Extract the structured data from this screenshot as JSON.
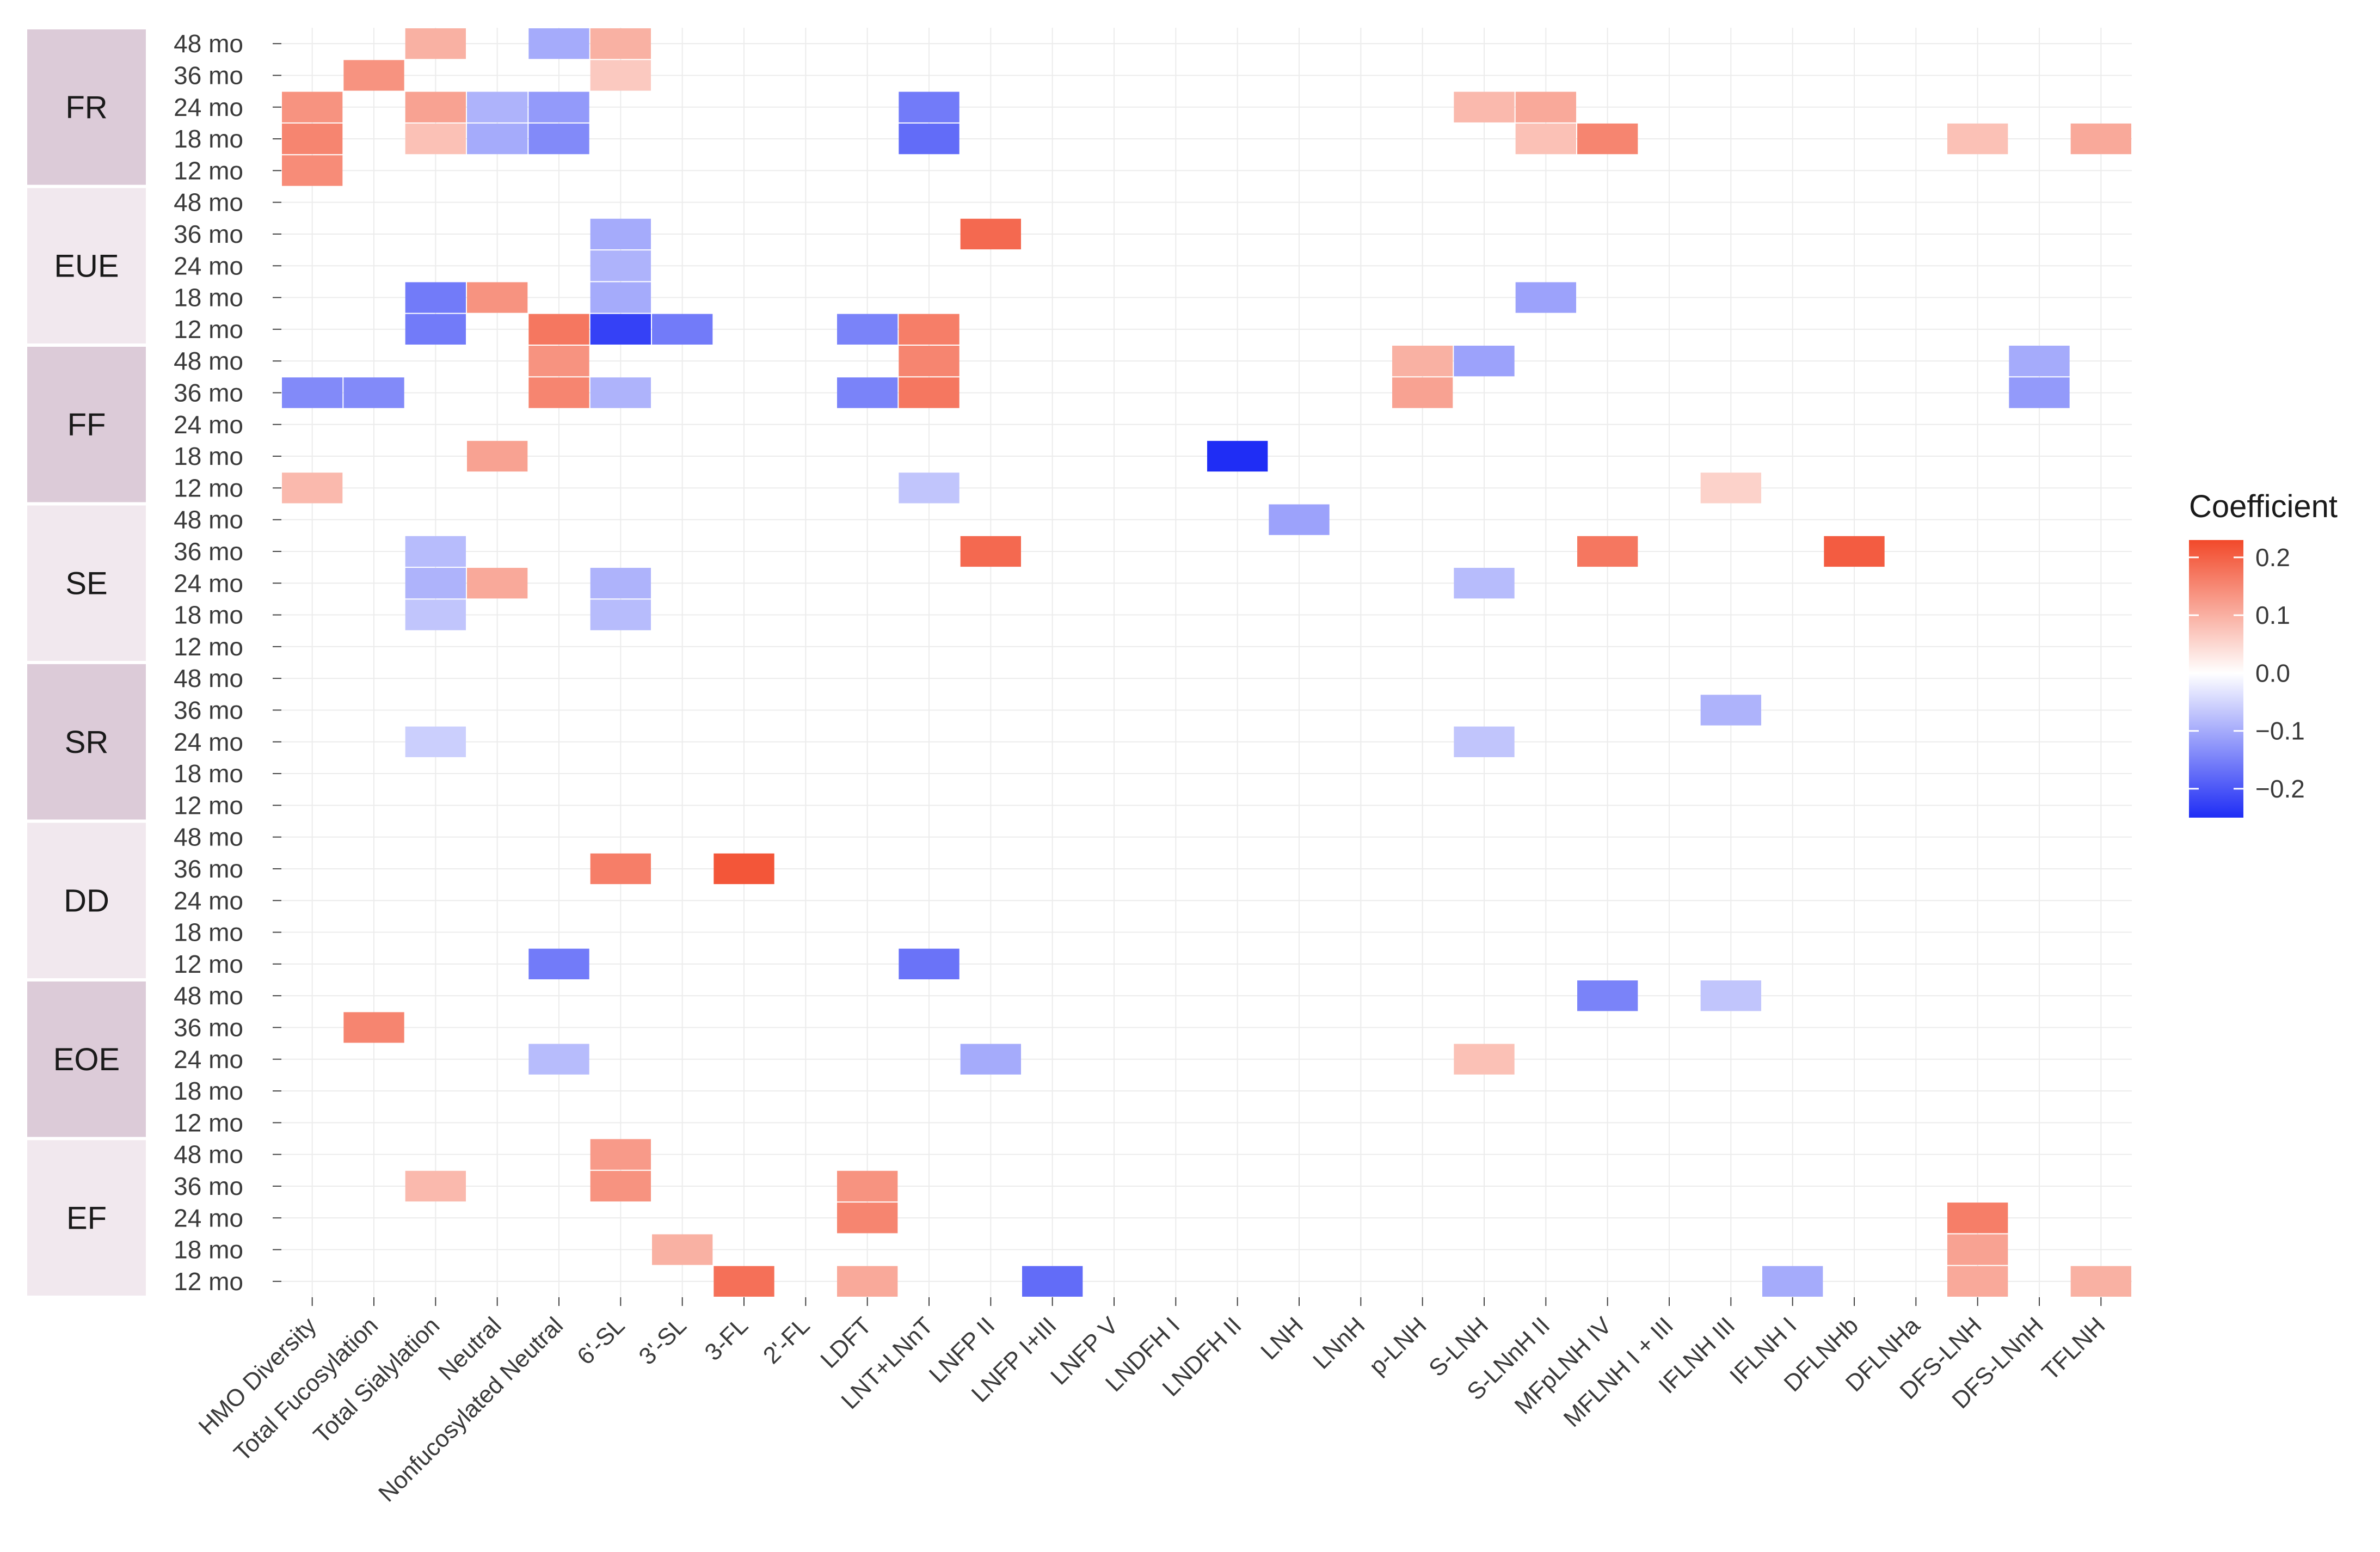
{
  "chart_data": {
    "type": "heatmap",
    "title": "",
    "legend": {
      "title": "Coefficient",
      "ticks": [
        0.2,
        0.1,
        0.0,
        -0.1,
        -0.2
      ],
      "tick_labels": [
        "0.2",
        "0.1",
        "0.0",
        "−0.1",
        "−0.2"
      ],
      "range": [
        -0.25,
        0.23
      ],
      "colors": {
        "low": "#1f2df5",
        "mid": "#ffffff",
        "high": "#f2492a"
      },
      "placement": "right"
    },
    "facets": [
      "FR",
      "EUE",
      "FF",
      "SE",
      "SR",
      "DD",
      "EOE",
      "EF"
    ],
    "time_points": [
      "48 mo",
      "36 mo",
      "24 mo",
      "18 mo",
      "12 mo"
    ],
    "columns": [
      "HMO Diversity",
      "Total Fucosylation",
      "Total Sialylation",
      "Neutral",
      "Nonfucosylated Neutral",
      "6'-SL",
      "3'-SL",
      "3-FL",
      "2'-FL",
      "LDFT",
      "LNT+LNnT",
      "LNFP II",
      "LNFP I+III",
      "LNFP V",
      "LNDFH I",
      "LNDFH II",
      "LNH",
      "LNnH",
      "p-LNH",
      "S-LNH",
      "S-LNnH II",
      "MFpLNH IV",
      "MFLNH I + III",
      "IFLNH III",
      "IFLNH I",
      "DFLNHb",
      "DFLNHa",
      "DFS-LNH",
      "DFS-LNnH",
      "TFLNH"
    ],
    "cells": [
      [
        "FR",
        "48 mo",
        "Total Sialylation",
        0.08
      ],
      [
        "FR",
        "48 mo",
        "Nonfucosylated Neutral",
        -0.08
      ],
      [
        "FR",
        "48 mo",
        "6'-SL",
        0.08
      ],
      [
        "FR",
        "36 mo",
        "Total Fucosylation",
        0.12
      ],
      [
        "FR",
        "36 mo",
        "6'-SL",
        0.05
      ],
      [
        "FR",
        "24 mo",
        "HMO Diversity",
        0.12
      ],
      [
        "FR",
        "24 mo",
        "Total Sialylation",
        0.1
      ],
      [
        "FR",
        "24 mo",
        "Neutral",
        -0.07
      ],
      [
        "FR",
        "24 mo",
        "Nonfucosylated Neutral",
        -0.1
      ],
      [
        "FR",
        "24 mo",
        "LNT+LNnT",
        -0.14
      ],
      [
        "FR",
        "24 mo",
        "S-LNH",
        0.07
      ],
      [
        "FR",
        "24 mo",
        "S-LNnH II",
        0.09
      ],
      [
        "FR",
        "18 mo",
        "HMO Diversity",
        0.14
      ],
      [
        "FR",
        "18 mo",
        "Total Sialylation",
        0.06
      ],
      [
        "FR",
        "18 mo",
        "Neutral",
        -0.08
      ],
      [
        "FR",
        "18 mo",
        "Nonfucosylated Neutral",
        -0.12
      ],
      [
        "FR",
        "18 mo",
        "LNT+LNnT",
        -0.16
      ],
      [
        "FR",
        "18 mo",
        "S-LNnH II",
        0.06
      ],
      [
        "FR",
        "18 mo",
        "MFpLNH IV",
        0.14
      ],
      [
        "FR",
        "18 mo",
        "DFS-LNH",
        0.06
      ],
      [
        "FR",
        "18 mo",
        "TFLNH",
        0.09
      ],
      [
        "FR",
        "12 mo",
        "HMO Diversity",
        0.13
      ],
      [
        "EUE",
        "36 mo",
        "6'-SL",
        -0.08
      ],
      [
        "EUE",
        "36 mo",
        "LNFP II",
        0.18
      ],
      [
        "EUE",
        "24 mo",
        "6'-SL",
        -0.07
      ],
      [
        "EUE",
        "18 mo",
        "Total Sialylation",
        -0.14
      ],
      [
        "EUE",
        "18 mo",
        "Neutral",
        0.12
      ],
      [
        "EUE",
        "18 mo",
        "6'-SL",
        -0.08
      ],
      [
        "EUE",
        "18 mo",
        "S-LNnH II",
        -0.09
      ],
      [
        "EUE",
        "12 mo",
        "Total Sialylation",
        -0.14
      ],
      [
        "EUE",
        "12 mo",
        "Nonfucosylated Neutral",
        0.16
      ],
      [
        "EUE",
        "12 mo",
        "6'-SL",
        -0.22
      ],
      [
        "EUE",
        "12 mo",
        "3'-SL",
        -0.14
      ],
      [
        "EUE",
        "12 mo",
        "LDFT",
        -0.13
      ],
      [
        "EUE",
        "12 mo",
        "LNT+LNnT",
        0.15
      ],
      [
        "FF",
        "48 mo",
        "Nonfucosylated Neutral",
        0.12
      ],
      [
        "FF",
        "48 mo",
        "LNT+LNnT",
        0.14
      ],
      [
        "FF",
        "48 mo",
        "p-LNH",
        0.08
      ],
      [
        "FF",
        "48 mo",
        "S-LNH",
        -0.09
      ],
      [
        "FF",
        "48 mo",
        "DFS-LNnH",
        -0.08
      ],
      [
        "FF",
        "36 mo",
        "HMO Diversity",
        -0.12
      ],
      [
        "FF",
        "36 mo",
        "Total Fucosylation",
        -0.12
      ],
      [
        "FF",
        "36 mo",
        "Nonfucosylated Neutral",
        0.14
      ],
      [
        "FF",
        "36 mo",
        "6'-SL",
        -0.07
      ],
      [
        "FF",
        "36 mo",
        "LDFT",
        -0.13
      ],
      [
        "FF",
        "36 mo",
        "LNT+LNnT",
        0.16
      ],
      [
        "FF",
        "36 mo",
        "p-LNH",
        0.1
      ],
      [
        "FF",
        "36 mo",
        "DFS-LNnH",
        -0.1
      ],
      [
        "FF",
        "18 mo",
        "Neutral",
        0.1
      ],
      [
        "FF",
        "18 mo",
        "LNDFH II",
        -0.25
      ],
      [
        "FF",
        "12 mo",
        "HMO Diversity",
        0.07
      ],
      [
        "FF",
        "12 mo",
        "LNT+LNnT",
        -0.05
      ],
      [
        "FF",
        "12 mo",
        "IFLNH III",
        0.04
      ],
      [
        "SE",
        "48 mo",
        "LNH",
        -0.09
      ],
      [
        "SE",
        "36 mo",
        "Total Sialylation",
        -0.06
      ],
      [
        "SE",
        "36 mo",
        "LNFP II",
        0.18
      ],
      [
        "SE",
        "36 mo",
        "MFpLNH IV",
        0.16
      ],
      [
        "SE",
        "36 mo",
        "DFLNHb",
        0.2
      ],
      [
        "SE",
        "24 mo",
        "Total Sialylation",
        -0.07
      ],
      [
        "SE",
        "24 mo",
        "Neutral",
        0.09
      ],
      [
        "SE",
        "24 mo",
        "6'-SL",
        -0.07
      ],
      [
        "SE",
        "24 mo",
        "S-LNH",
        -0.06
      ],
      [
        "SE",
        "18 mo",
        "Total Sialylation",
        -0.05
      ],
      [
        "SE",
        "18 mo",
        "6'-SL",
        -0.06
      ],
      [
        "SR",
        "36 mo",
        "IFLNH III",
        -0.07
      ],
      [
        "SR",
        "24 mo",
        "Total Sialylation",
        -0.04
      ],
      [
        "SR",
        "24 mo",
        "S-LNH",
        -0.05
      ],
      [
        "DD",
        "36 mo",
        "6'-SL",
        0.15
      ],
      [
        "DD",
        "36 mo",
        "3-FL",
        0.21
      ],
      [
        "DD",
        "12 mo",
        "Nonfucosylated Neutral",
        -0.14
      ],
      [
        "DD",
        "12 mo",
        "LNT+LNnT",
        -0.15
      ],
      [
        "EOE",
        "48 mo",
        "MFpLNH IV",
        -0.13
      ],
      [
        "EOE",
        "48 mo",
        "IFLNH III",
        -0.05
      ],
      [
        "EOE",
        "36 mo",
        "Total Fucosylation",
        0.14
      ],
      [
        "EOE",
        "24 mo",
        "Nonfucosylated Neutral",
        -0.06
      ],
      [
        "EOE",
        "24 mo",
        "LNFP II",
        -0.08
      ],
      [
        "EOE",
        "24 mo",
        "S-LNH",
        0.06
      ],
      [
        "EF",
        "48 mo",
        "6'-SL",
        0.11
      ],
      [
        "EF",
        "36 mo",
        "Total Sialylation",
        0.07
      ],
      [
        "EF",
        "36 mo",
        "6'-SL",
        0.12
      ],
      [
        "EF",
        "36 mo",
        "LDFT",
        0.12
      ],
      [
        "EF",
        "24 mo",
        "LDFT",
        0.14
      ],
      [
        "EF",
        "24 mo",
        "DFS-LNH",
        0.15
      ],
      [
        "EF",
        "18 mo",
        "3'-SL",
        0.08
      ],
      [
        "EF",
        "18 mo",
        "DFS-LNH",
        0.1
      ],
      [
        "EF",
        "12 mo",
        "3-FL",
        0.17
      ],
      [
        "EF",
        "12 mo",
        "LDFT",
        0.09
      ],
      [
        "EF",
        "12 mo",
        "LNFP I+III",
        -0.16
      ],
      [
        "EF",
        "12 mo",
        "IFLNH I",
        -0.08
      ],
      [
        "EF",
        "12 mo",
        "DFS-LNH",
        0.09
      ],
      [
        "EF",
        "12 mo",
        "TFLNH",
        0.08
      ]
    ]
  }
}
